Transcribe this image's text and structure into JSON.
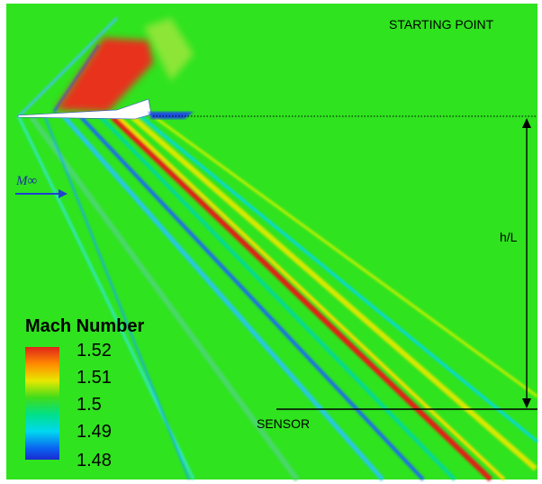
{
  "labels": {
    "starting_point": "STARTING POINT",
    "height": "h/L",
    "sensor": "SENSOR",
    "freestream": "M∞"
  },
  "colorbar": {
    "title": "Mach Number",
    "ticks": [
      "1.52",
      "1.51",
      "1.5",
      "1.49",
      "1.48"
    ]
  }
}
